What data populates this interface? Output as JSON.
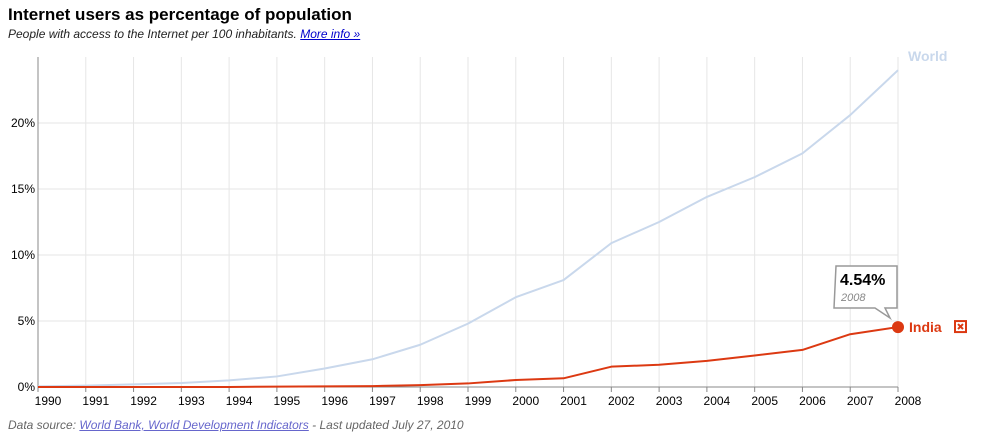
{
  "header": {
    "title": "Internet users as percentage of population",
    "subtitle": "People with access to the Internet per 100 inhabitants.",
    "more_info": "More info »"
  },
  "footer": {
    "source_prefix": "Data source: ",
    "source_link": "World Bank, World Development Indicators",
    "updated": " - Last updated July 27, 2010"
  },
  "tooltip": {
    "value": "4.54%",
    "year": "2008"
  },
  "colors": {
    "world": "#c9d8ec",
    "india": "#dc3912",
    "grid": "#e6e6e6",
    "axis": "#888888"
  },
  "remove_icon": "close-box-icon",
  "chart_data": {
    "type": "line",
    "title": "Internet users as percentage of population",
    "subtitle": "People with access to the Internet per 100 inhabitants.",
    "x": [
      1990,
      1991,
      1992,
      1993,
      1994,
      1995,
      1996,
      1997,
      1998,
      1999,
      2000,
      2001,
      2002,
      2003,
      2004,
      2005,
      2006,
      2007,
      2008
    ],
    "ylim": [
      0,
      25
    ],
    "yticks": [
      0,
      5,
      10,
      15,
      20
    ],
    "ytick_labels": [
      "0%",
      "5%",
      "10%",
      "15%",
      "20%"
    ],
    "grid": true,
    "series": [
      {
        "name": "World",
        "color": "#c9d8ec",
        "values": [
          0.05,
          0.1,
          0.2,
          0.3,
          0.5,
          0.8,
          1.4,
          2.1,
          3.2,
          4.8,
          6.8,
          8.1,
          10.9,
          12.5,
          14.4,
          15.9,
          17.7,
          20.6,
          24.0
        ]
      },
      {
        "name": "India",
        "color": "#dc3912",
        "values": [
          0.0,
          0.0,
          0.0,
          0.0,
          0.0,
          0.03,
          0.05,
          0.07,
          0.14,
          0.27,
          0.53,
          0.66,
          1.54,
          1.69,
          1.98,
          2.39,
          2.81,
          4.0,
          4.54
        ]
      }
    ],
    "highlight": {
      "series": "India",
      "x": 2008,
      "value": 4.54
    }
  }
}
